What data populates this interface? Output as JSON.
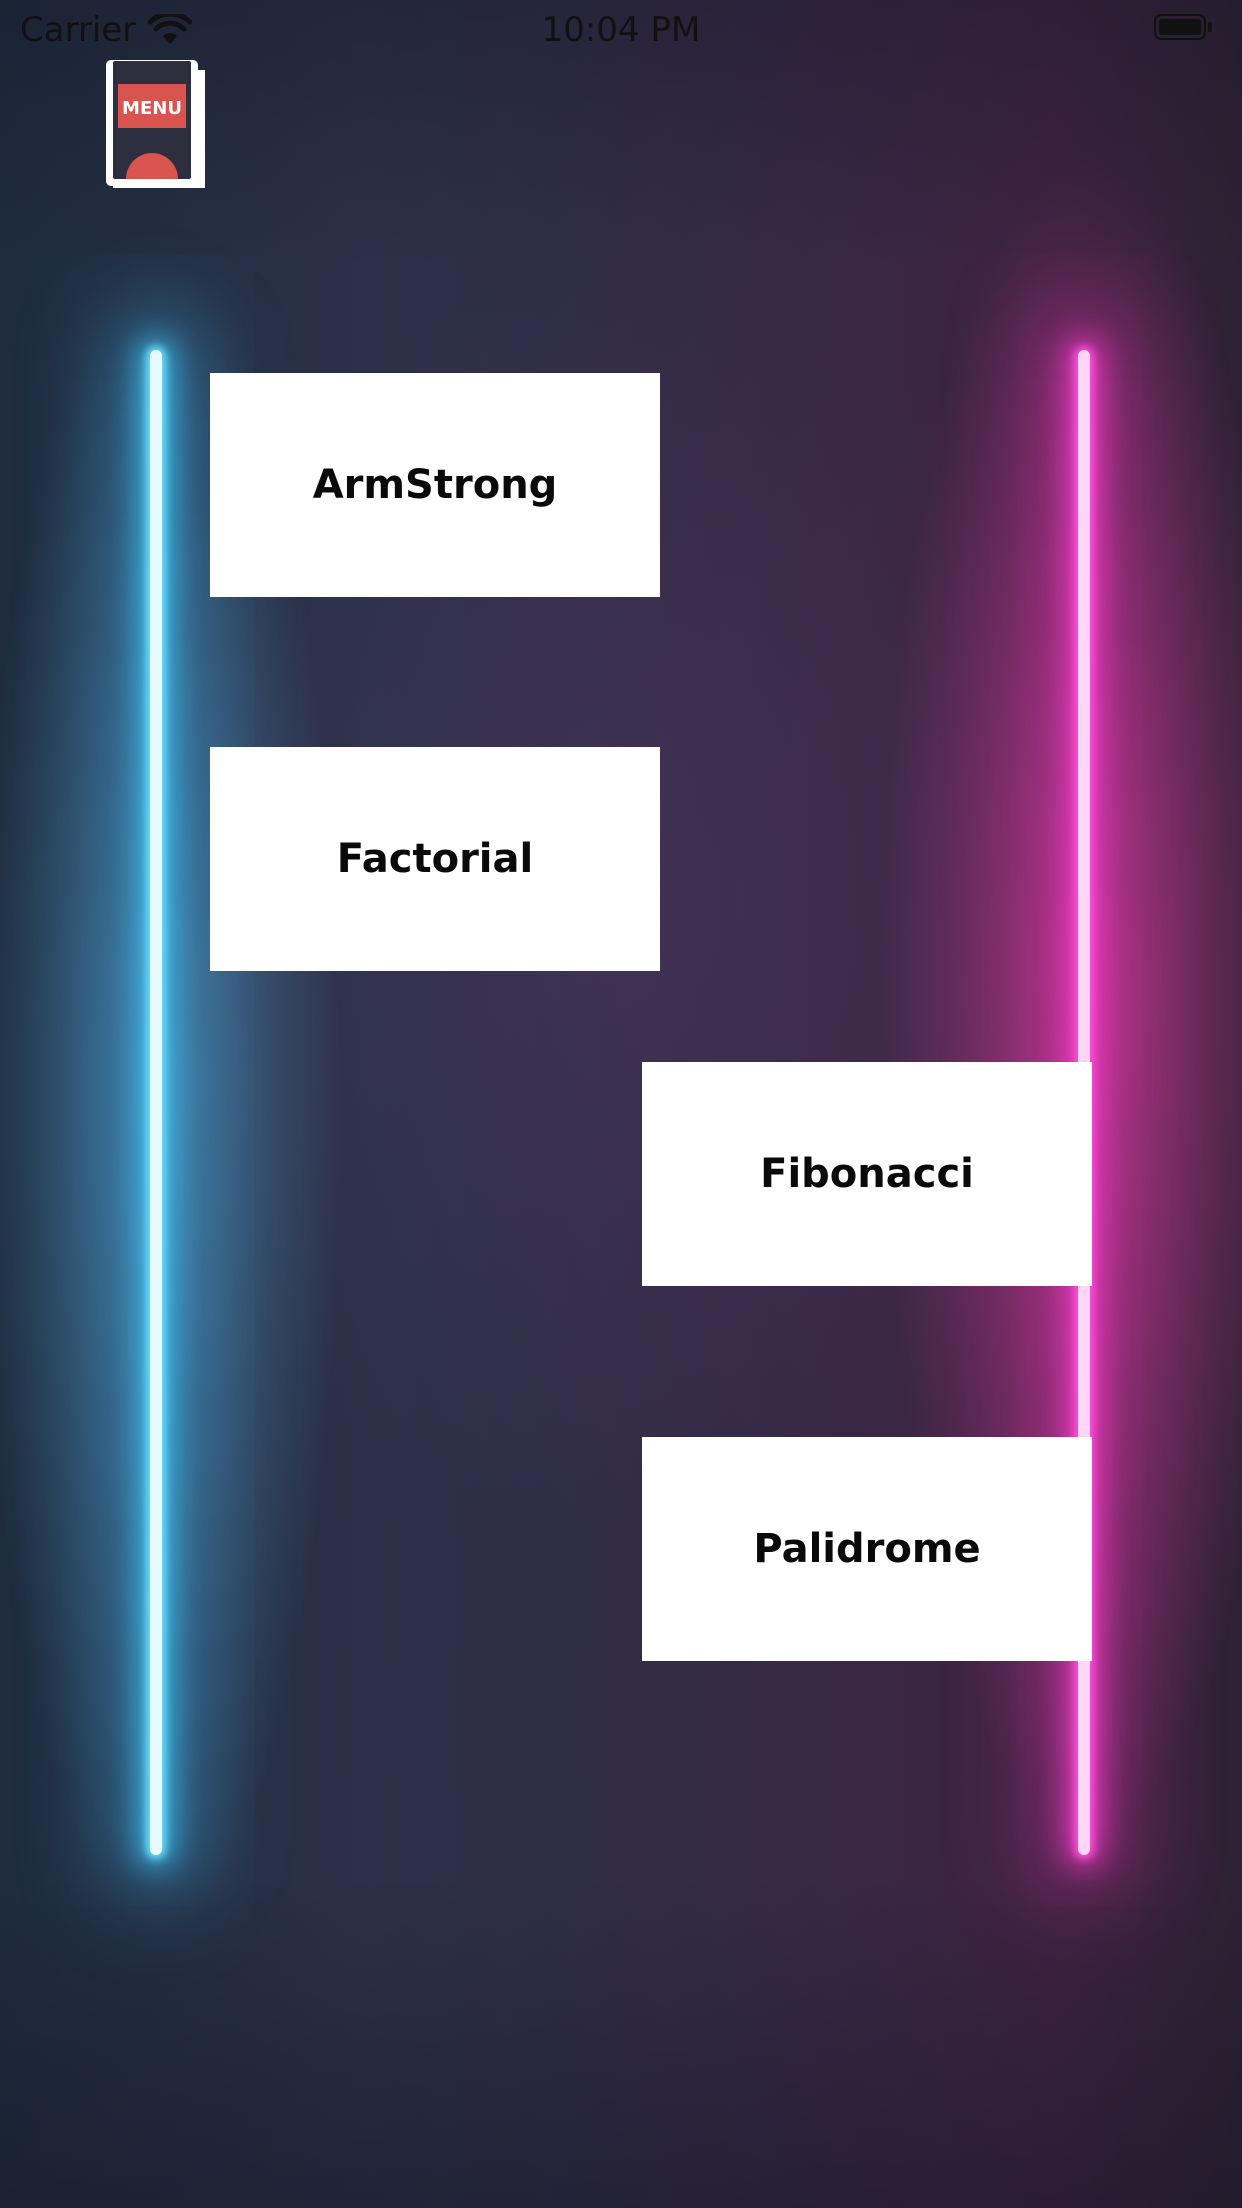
{
  "status_bar": {
    "carrier": "Carrier",
    "time": "10:04 PM",
    "wifi_icon": "wifi-icon",
    "battery_icon": "battery-icon"
  },
  "menu": {
    "icon": "menu-book-icon",
    "label": "MENU",
    "accent_color": "#d9534f"
  },
  "buttons": [
    {
      "label": "ArmStrong"
    },
    {
      "label": "Factorial"
    },
    {
      "label": "Fibonacci"
    },
    {
      "label": "Palidrome"
    }
  ],
  "colors": {
    "neon_left": "#6fdcff",
    "neon_right": "#ff4fd8",
    "button_bg": "#ffffff",
    "button_text": "#0a0a0a"
  }
}
